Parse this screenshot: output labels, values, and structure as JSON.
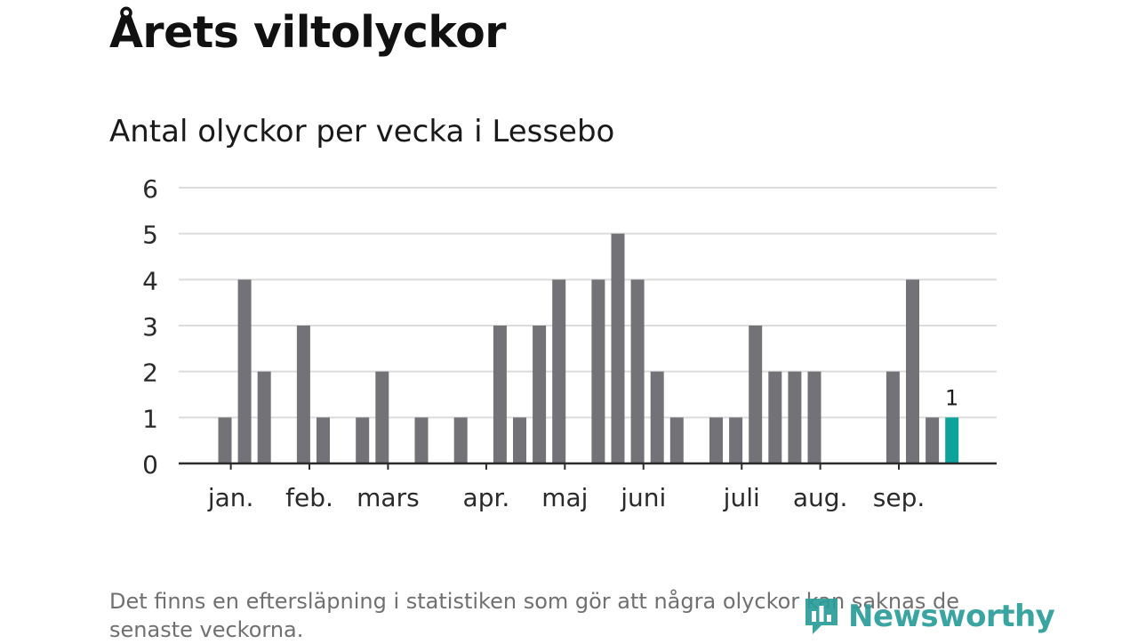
{
  "title": "Årets viltolyckor",
  "note": "Det finns en eftersläpning i statistiken som gör att några olyckor kan saknas de senaste veckorna.",
  "brand": "Newsworthy",
  "chart_data": {
    "type": "bar",
    "title": "Antal olyckor per vecka i Lessebo",
    "ylim": [
      0,
      6
    ],
    "yticks": [
      "0",
      "1",
      "2",
      "3",
      "4",
      "5",
      "6"
    ],
    "grid": true,
    "bar_color": "#737277",
    "highlight_color": "#0ea39a",
    "values": [
      1,
      4,
      2,
      0,
      3,
      1,
      0,
      1,
      2,
      0,
      1,
      0,
      1,
      0,
      3,
      1,
      3,
      4,
      0,
      4,
      5,
      4,
      2,
      1,
      0,
      1,
      1,
      3,
      2,
      2,
      2,
      0,
      0,
      0,
      2,
      4,
      1,
      1
    ],
    "highlight_index": 37,
    "data_label": "1",
    "month_labels": [
      {
        "label": "jan.",
        "week": 0.3
      },
      {
        "label": "feb.",
        "week": 4.3
      },
      {
        "label": "mars",
        "week": 8.3
      },
      {
        "label": "apr.",
        "week": 13.3
      },
      {
        "label": "maj",
        "week": 17.3
      },
      {
        "label": "juni",
        "week": 21.3
      },
      {
        "label": "juli",
        "week": 26.3
      },
      {
        "label": "aug.",
        "week": 30.3
      },
      {
        "label": "sep.",
        "week": 34.3
      }
    ]
  }
}
